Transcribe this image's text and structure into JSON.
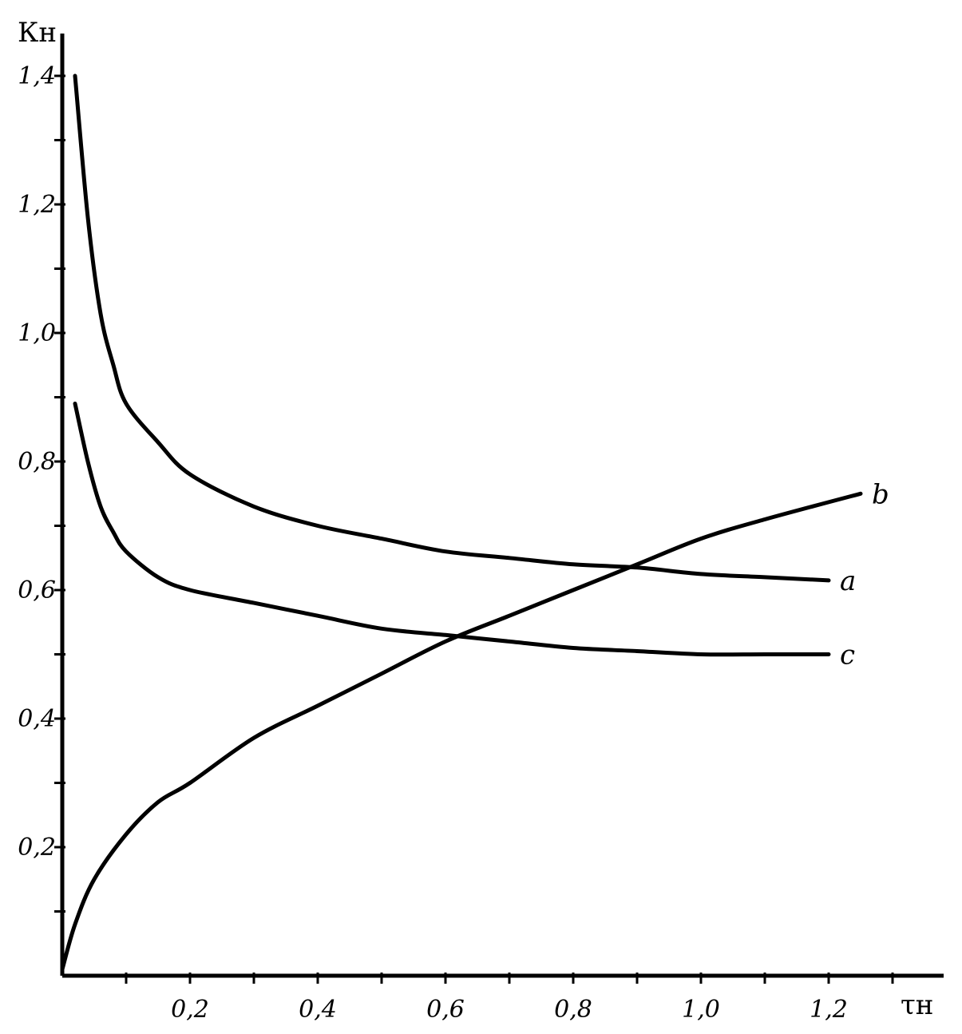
{
  "chart_data": {
    "type": "line",
    "xlabel": "τн",
    "ylabel": "Кн",
    "xlim": [
      0,
      1.3
    ],
    "ylim": [
      0,
      1.45
    ],
    "x_ticks": [
      0.2,
      0.4,
      0.6,
      0.8,
      1.0,
      1.2
    ],
    "x_tick_labels": [
      "0,2",
      "0,4",
      "0,6",
      "0,8",
      "1,0",
      "1,2"
    ],
    "y_ticks": [
      0.2,
      0.4,
      0.6,
      0.8,
      1.0,
      1.2,
      1.4
    ],
    "y_tick_labels": [
      "0,2",
      "0,4",
      "0,6",
      "0,8",
      "1,0",
      "1,2",
      "1,4"
    ],
    "grid": false,
    "series": [
      {
        "name": "a",
        "x": [
          0.02,
          0.04,
          0.06,
          0.08,
          0.1,
          0.15,
          0.2,
          0.3,
          0.4,
          0.5,
          0.6,
          0.7,
          0.8,
          0.9,
          1.0,
          1.1,
          1.2
        ],
        "y": [
          1.4,
          1.18,
          1.03,
          0.95,
          0.89,
          0.83,
          0.78,
          0.73,
          0.7,
          0.68,
          0.66,
          0.65,
          0.64,
          0.635,
          0.625,
          0.62,
          0.615
        ]
      },
      {
        "name": "b",
        "x": [
          0.0,
          0.02,
          0.05,
          0.1,
          0.15,
          0.2,
          0.3,
          0.4,
          0.5,
          0.6,
          0.7,
          0.8,
          0.9,
          1.0,
          1.1,
          1.25
        ],
        "y": [
          0.01,
          0.08,
          0.15,
          0.22,
          0.27,
          0.3,
          0.37,
          0.42,
          0.47,
          0.52,
          0.56,
          0.6,
          0.64,
          0.68,
          0.71,
          0.75
        ]
      },
      {
        "name": "c",
        "x": [
          0.02,
          0.04,
          0.06,
          0.08,
          0.1,
          0.15,
          0.2,
          0.3,
          0.4,
          0.5,
          0.6,
          0.7,
          0.8,
          0.9,
          1.0,
          1.1,
          1.2
        ],
        "y": [
          0.89,
          0.8,
          0.73,
          0.69,
          0.66,
          0.62,
          0.6,
          0.58,
          0.56,
          0.54,
          0.53,
          0.52,
          0.51,
          0.505,
          0.5,
          0.5,
          0.5
        ]
      }
    ]
  }
}
